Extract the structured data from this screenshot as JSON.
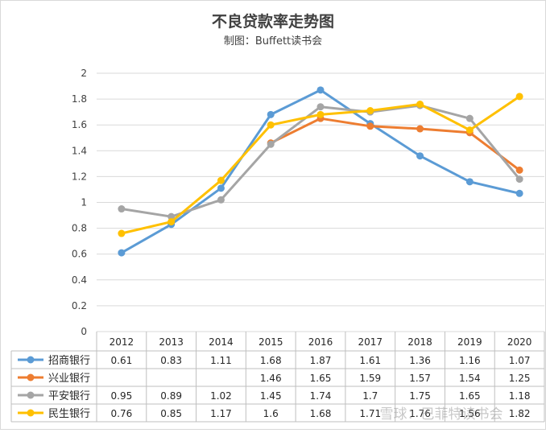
{
  "chart_data": {
    "type": "line",
    "title": "不良贷款率走势图",
    "subtitle": "制图：Buffett读书会",
    "categories": [
      "2012",
      "2013",
      "2014",
      "2015",
      "2016",
      "2017",
      "2018",
      "2019",
      "2020"
    ],
    "ylim": [
      0,
      2
    ],
    "yticks": [
      "0",
      "0.2",
      "0.4",
      "0.6",
      "0.8",
      "1",
      "1.2",
      "1.4",
      "1.6",
      "1.8",
      "2"
    ],
    "grid": true,
    "legend": "data-table-left",
    "series": [
      {
        "name": "招商银行",
        "color": "#5b9bd5",
        "values": [
          0.61,
          0.83,
          1.11,
          1.68,
          1.87,
          1.61,
          1.36,
          1.16,
          1.07
        ],
        "labels": [
          "0.61",
          "0.83",
          "1.11",
          "1.68",
          "1.87",
          "1.61",
          "1.36",
          "1.16",
          "1.07"
        ]
      },
      {
        "name": "兴业银行",
        "color": "#ed7d31",
        "values": [
          null,
          null,
          null,
          1.46,
          1.65,
          1.59,
          1.57,
          1.54,
          1.25
        ],
        "labels": [
          "",
          "",
          "",
          "1.46",
          "1.65",
          "1.59",
          "1.57",
          "1.54",
          "1.25"
        ]
      },
      {
        "name": "平安银行",
        "color": "#a5a5a5",
        "values": [
          0.95,
          0.89,
          1.02,
          1.45,
          1.74,
          1.7,
          1.75,
          1.65,
          1.18
        ],
        "labels": [
          "0.95",
          "0.89",
          "1.02",
          "1.45",
          "1.74",
          "1.7",
          "1.75",
          "1.65",
          "1.18"
        ]
      },
      {
        "name": "民生银行",
        "color": "#ffc000",
        "values": [
          0.76,
          0.85,
          1.17,
          1.6,
          1.68,
          1.71,
          1.76,
          1.56,
          1.82
        ],
        "labels": [
          "0.76",
          "0.85",
          "1.17",
          "1.6",
          "1.68",
          "1.71",
          "1.76",
          "1.56",
          "1.82"
        ]
      }
    ]
  },
  "watermark": "雪球：巴菲特读书会"
}
